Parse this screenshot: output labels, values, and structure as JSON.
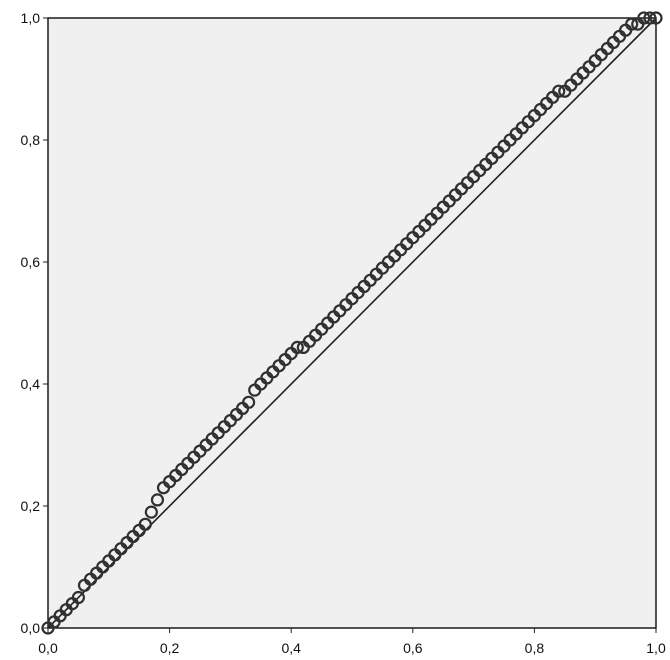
{
  "chart_data": {
    "type": "scatter",
    "title": "",
    "xlabel": "",
    "ylabel": "",
    "xlim": [
      0.0,
      1.0
    ],
    "ylim": [
      0.0,
      1.0
    ],
    "grid": false,
    "xticks": [
      "0,0",
      "0,2",
      "0,4",
      "0,6",
      "0,8",
      "1,0"
    ],
    "yticks": [
      "0,0",
      "0,2",
      "0,4",
      "0,6",
      "0,8",
      "1,0"
    ],
    "reference_line": {
      "from": [
        0.0,
        0.0
      ],
      "to": [
        1.0,
        1.0
      ]
    },
    "points": {
      "x": [
        0.0,
        0.01,
        0.02,
        0.03,
        0.04,
        0.05,
        0.06,
        0.07,
        0.08,
        0.09,
        0.1,
        0.11,
        0.12,
        0.13,
        0.14,
        0.15,
        0.16,
        0.17,
        0.18,
        0.19,
        0.2,
        0.21,
        0.22,
        0.23,
        0.24,
        0.25,
        0.26,
        0.27,
        0.28,
        0.29,
        0.3,
        0.31,
        0.32,
        0.33,
        0.34,
        0.35,
        0.36,
        0.37,
        0.38,
        0.39,
        0.4,
        0.41,
        0.42,
        0.43,
        0.44,
        0.45,
        0.46,
        0.47,
        0.48,
        0.49,
        0.5,
        0.51,
        0.52,
        0.53,
        0.54,
        0.55,
        0.56,
        0.57,
        0.58,
        0.59,
        0.6,
        0.61,
        0.62,
        0.63,
        0.64,
        0.65,
        0.66,
        0.67,
        0.68,
        0.69,
        0.7,
        0.71,
        0.72,
        0.73,
        0.74,
        0.75,
        0.76,
        0.77,
        0.78,
        0.79,
        0.8,
        0.81,
        0.82,
        0.83,
        0.84,
        0.85,
        0.86,
        0.87,
        0.88,
        0.89,
        0.9,
        0.91,
        0.92,
        0.93,
        0.94,
        0.95,
        0.96,
        0.97,
        0.98,
        0.99,
        1.0
      ],
      "y": [
        0.0,
        0.01,
        0.02,
        0.03,
        0.04,
        0.05,
        0.07,
        0.08,
        0.09,
        0.1,
        0.11,
        0.12,
        0.13,
        0.14,
        0.15,
        0.16,
        0.17,
        0.19,
        0.21,
        0.23,
        0.24,
        0.25,
        0.26,
        0.27,
        0.28,
        0.29,
        0.3,
        0.31,
        0.32,
        0.33,
        0.34,
        0.35,
        0.36,
        0.37,
        0.39,
        0.4,
        0.41,
        0.42,
        0.43,
        0.44,
        0.45,
        0.46,
        0.46,
        0.47,
        0.48,
        0.49,
        0.5,
        0.51,
        0.52,
        0.53,
        0.54,
        0.55,
        0.56,
        0.57,
        0.58,
        0.59,
        0.6,
        0.61,
        0.62,
        0.63,
        0.64,
        0.65,
        0.66,
        0.67,
        0.68,
        0.69,
        0.7,
        0.71,
        0.72,
        0.73,
        0.74,
        0.75,
        0.76,
        0.77,
        0.78,
        0.79,
        0.8,
        0.81,
        0.82,
        0.83,
        0.84,
        0.85,
        0.86,
        0.87,
        0.88,
        0.88,
        0.89,
        0.9,
        0.91,
        0.92,
        0.93,
        0.94,
        0.95,
        0.96,
        0.97,
        0.98,
        0.99,
        0.99,
        1.0,
        1.0,
        1.0
      ]
    }
  }
}
